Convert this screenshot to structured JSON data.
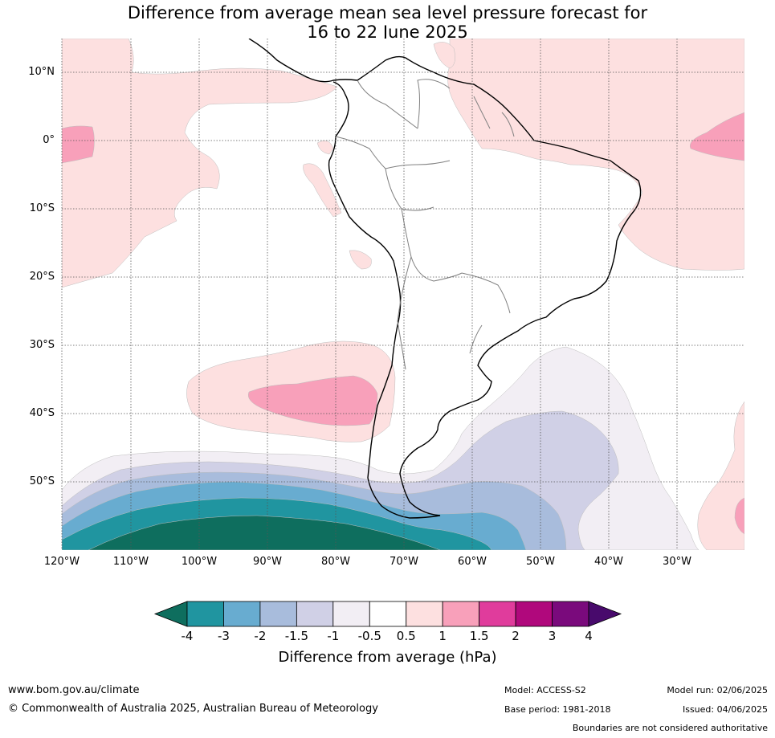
{
  "title_line1": "Difference from average mean sea level pressure forecast for",
  "title_line2": "16 to 22 June 2025",
  "lat_labels": [
    "10°N",
    "0°",
    "10°S",
    "20°S",
    "30°S",
    "40°S",
    "50°S"
  ],
  "lon_labels": [
    "120°W",
    "110°W",
    "100°W",
    "90°W",
    "80°W",
    "70°W",
    "60°W",
    "50°W",
    "40°W",
    "30°W"
  ],
  "colorbar": {
    "title": "Difference from average (hPa)",
    "tick_labels": [
      "-4",
      "-3",
      "-2",
      "-1.5",
      "-1",
      "-0.5",
      "0.5",
      "1",
      "1.5",
      "2",
      "3",
      "4"
    ],
    "colors": [
      "#0e6e5e",
      "#2095a0",
      "#68acd0",
      "#a8bcdc",
      "#d0d0e6",
      "#f2eef4",
      "#ffffff",
      "#fde0e0",
      "#f8a0ba",
      "#e03c9c",
      "#b0087c",
      "#7a0a7c",
      "#480a6c"
    ]
  },
  "map": {
    "colors": {
      "pink_light": "#fde0e0",
      "pink_mid": "#f8a0ba",
      "lav_light": "#f2eef4",
      "lav_mid": "#d0d0e6",
      "blue_light": "#a8bcdc",
      "blue_mid": "#68acd0",
      "teal": "#2095a0",
      "dark_teal": "#0e6e5e"
    }
  },
  "footer": {
    "url": "www.bom.gov.au/climate",
    "copyright": "© Commonwealth of Australia 2025, Australian Bureau of Meteorology",
    "model": "Model: ACCESS-S2",
    "base_period": "Base period: 1981-2018",
    "model_run": "Model run: 02/06/2025",
    "issued": "Issued: 04/06/2025",
    "boundaries": "Boundaries are not considered authoritative"
  }
}
